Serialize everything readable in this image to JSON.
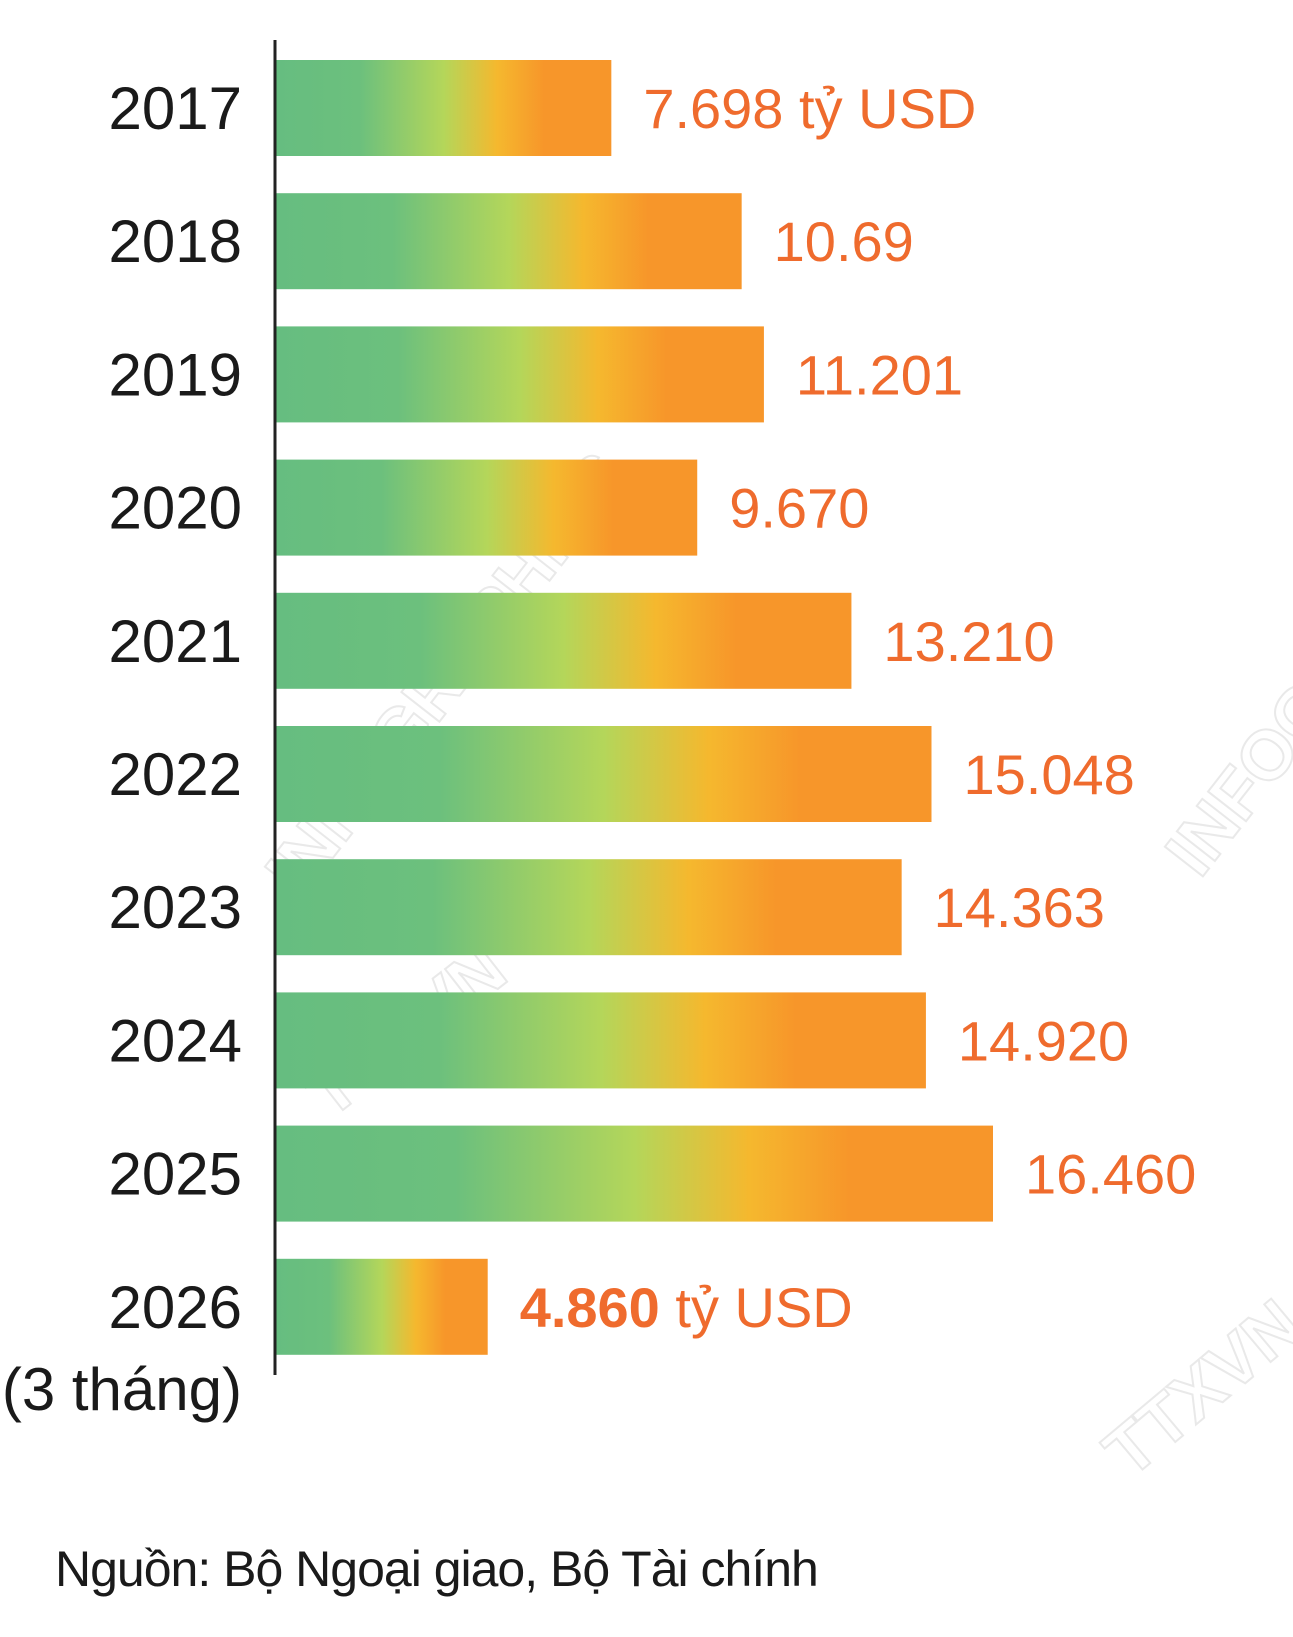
{
  "chart_data": {
    "type": "bar",
    "orientation": "horizontal",
    "categories": [
      "2017",
      "2018",
      "2019",
      "2020",
      "2021",
      "2022",
      "2023",
      "2024",
      "2025",
      "2026"
    ],
    "category_sublabels": {
      "9": "(3 tháng)"
    },
    "values": [
      7.698,
      10.69,
      11.201,
      9.67,
      13.21,
      15.048,
      14.363,
      14.92,
      16.46,
      4.86
    ],
    "value_labels": [
      "7.698 tỷ USD",
      "10.69",
      "11.201",
      "9.670",
      "13.210",
      "15.048",
      "14.363",
      "14.920",
      "16.460",
      "4.860 tỷ USD"
    ],
    "highlight_index": 9,
    "xlim": [
      0,
      16.46
    ],
    "grid": false,
    "colors": {
      "gradient_start": "#66bd80",
      "gradient_mid_green": "#b4d65a",
      "gradient_mid_yellow": "#f5b82e",
      "gradient_end": "#f7962a",
      "value_text": "#ef6b2d",
      "axis": "#222222"
    }
  },
  "source": "Nguồn: Bộ Ngoại giao,  Bộ Tài chính",
  "watermarks": [
    "INFOGRAPHICS",
    "TTXVN",
    "INFOGRAPHICS",
    "TTXVN"
  ]
}
